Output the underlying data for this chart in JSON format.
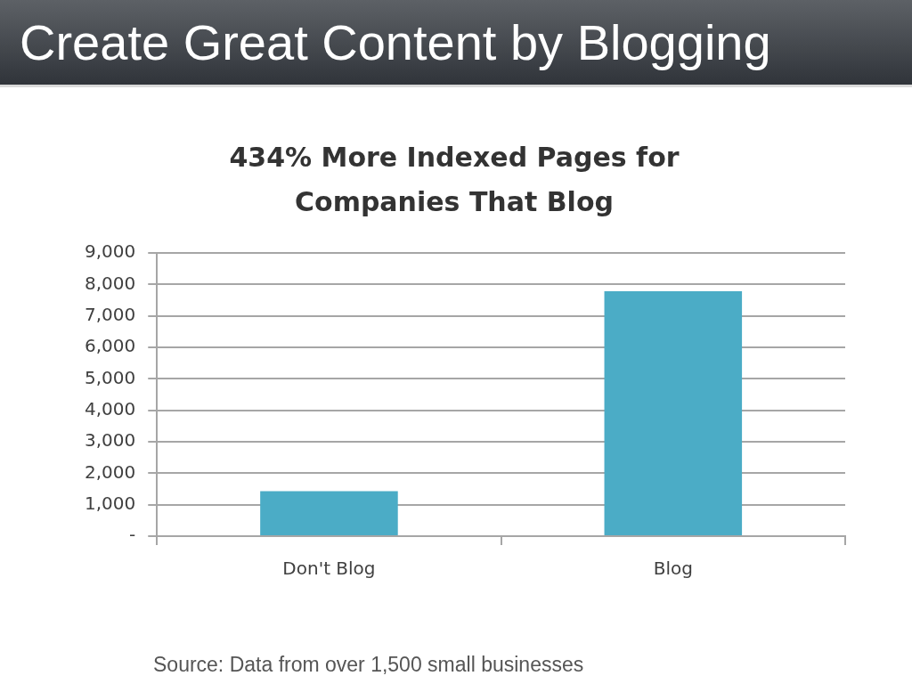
{
  "chart_data": {
    "type": "bar",
    "title": "Create Great Content by Blogging",
    "subtitle": "434% More Indexed Pages for Companies That Blog",
    "categories": [
      "Don't Blog",
      "Blog"
    ],
    "values": [
      1430,
      7780
    ],
    "color": "#4bacc6",
    "ylim": [
      0,
      9000
    ],
    "yticks": [
      {
        "value": 0,
        "label": "-"
      },
      {
        "value": 1000,
        "label": "1,000"
      },
      {
        "value": 2000,
        "label": "2,000"
      },
      {
        "value": 3000,
        "label": "3,000"
      },
      {
        "value": 4000,
        "label": "4,000"
      },
      {
        "value": 5000,
        "label": "5,000"
      },
      {
        "value": 6000,
        "label": "6,000"
      },
      {
        "value": 7000,
        "label": "7,000"
      },
      {
        "value": 8000,
        "label": "8,000"
      },
      {
        "value": 9000,
        "label": "9,000"
      }
    ],
    "grid": "y",
    "annotations": [
      "Source: Data from over 1,500 small businesses"
    ]
  }
}
